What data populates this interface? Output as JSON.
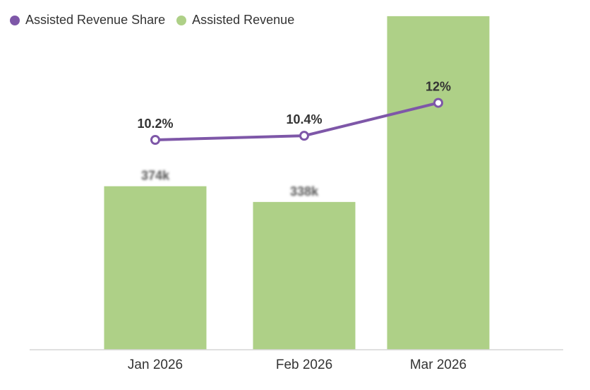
{
  "chart_data": {
    "type": "bar",
    "categories": [
      "Jan 2026",
      "Feb 2026",
      "Mar 2026"
    ],
    "series": [
      {
        "name": "Assisted Revenue",
        "type": "bar",
        "axis": "left",
        "values": [
          374000,
          338000,
          763000
        ],
        "labels": [
          "374k",
          "338k",
          ""
        ]
      },
      {
        "name": "Assisted Revenue Share",
        "type": "line",
        "axis": "right",
        "values": [
          10.2,
          10.4,
          12.0
        ],
        "labels": [
          "10.2%",
          "10.4%",
          "12%"
        ]
      }
    ],
    "left_ylim": [
      0,
      800000
    ],
    "right_ylim": [
      0,
      17
    ],
    "legend_position": "top-left",
    "grid": false,
    "colors": {
      "bar": "#aed087",
      "line": "#7e57a8"
    }
  }
}
